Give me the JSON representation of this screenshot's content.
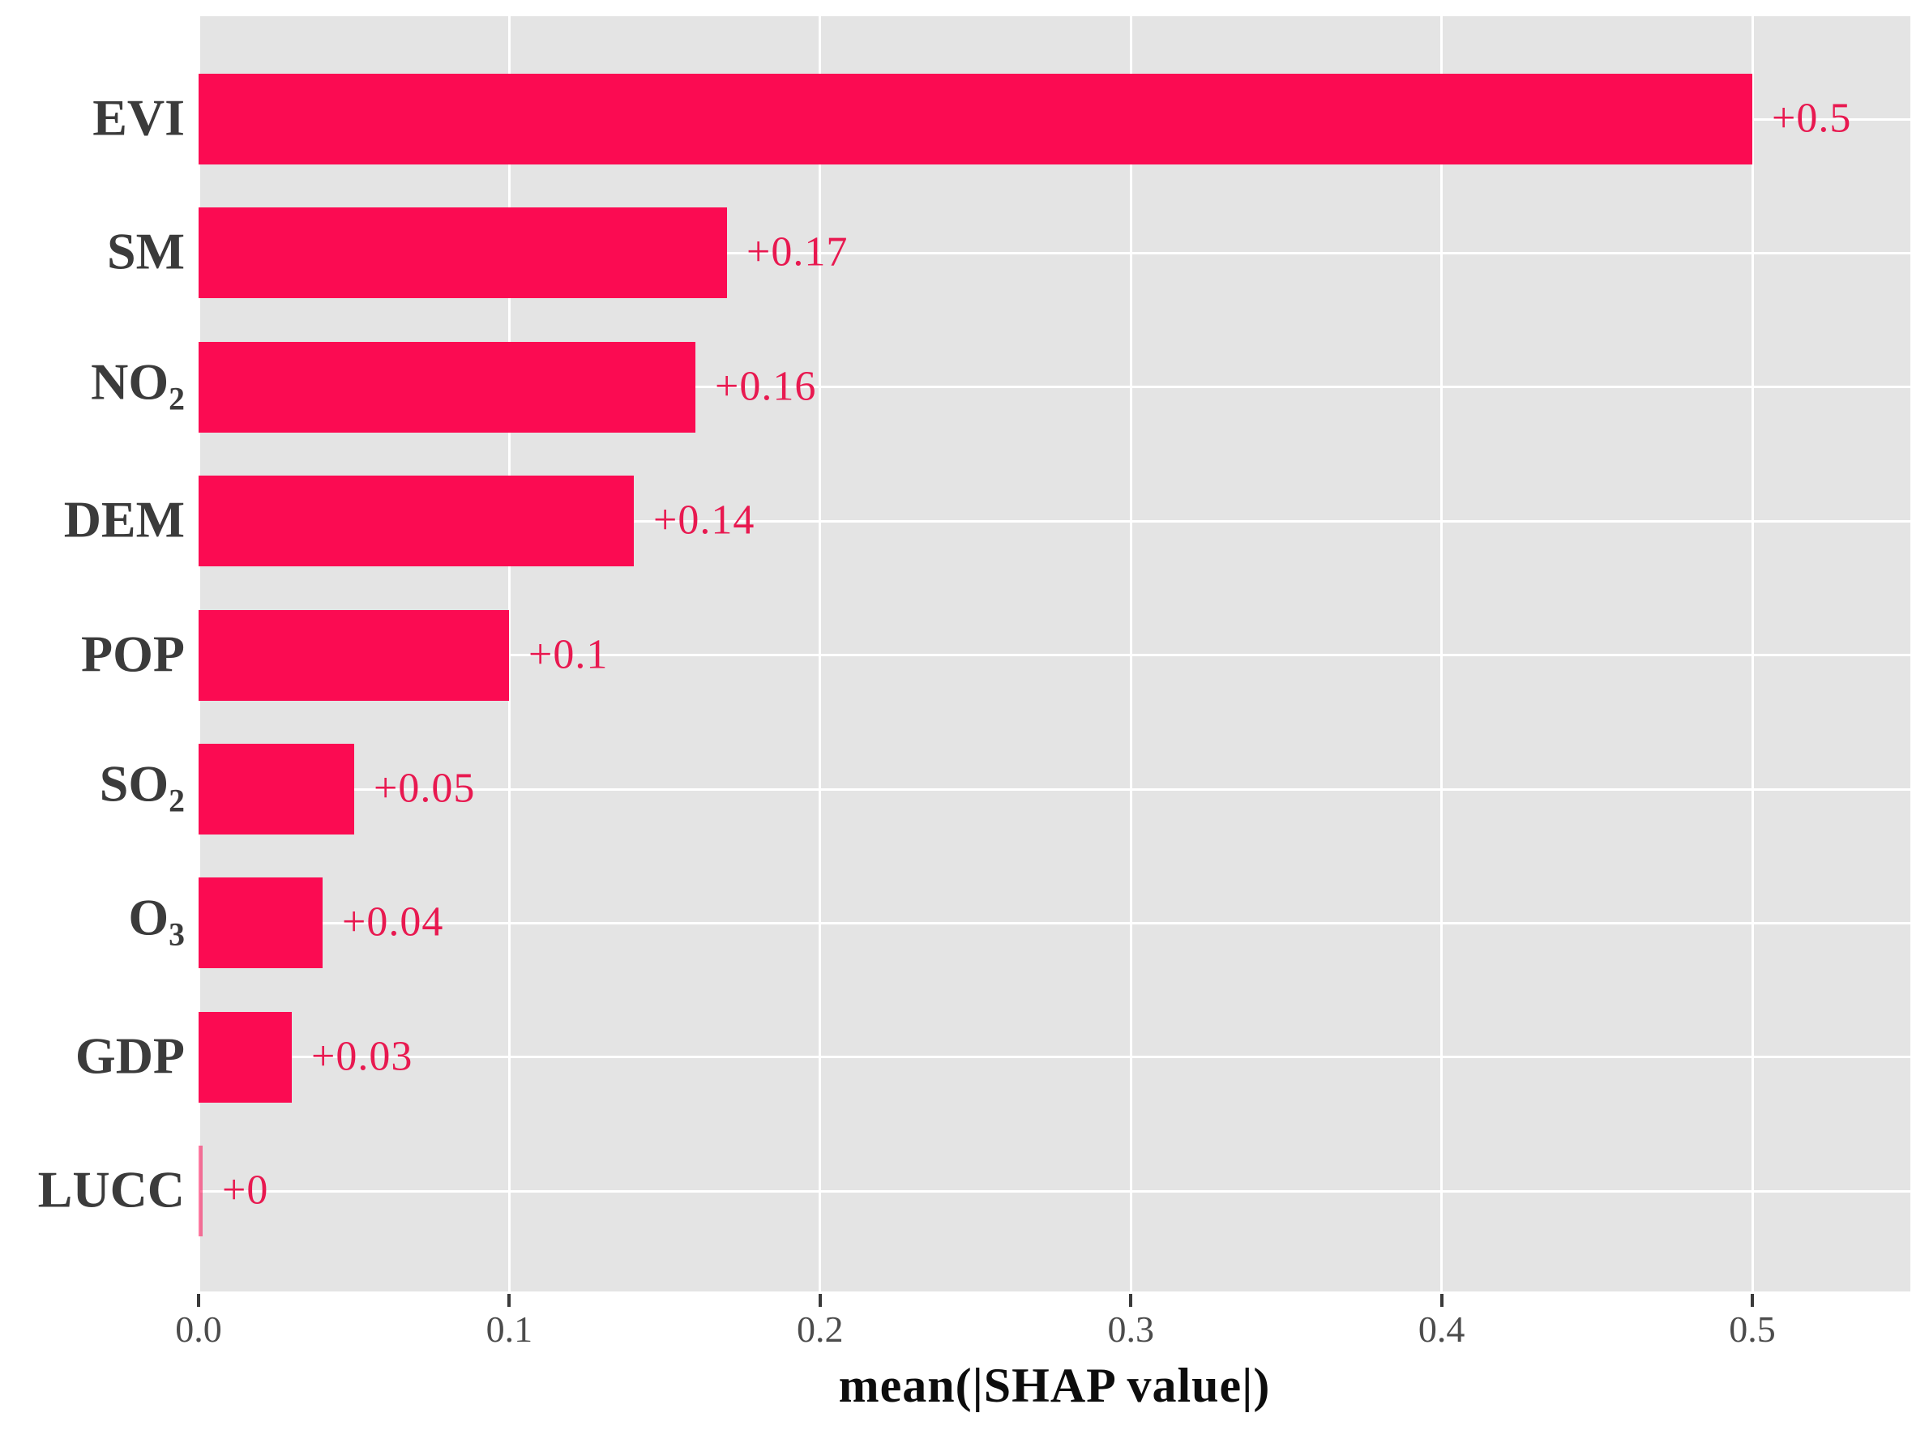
{
  "chart_data": {
    "type": "bar",
    "orientation": "horizontal",
    "title": "",
    "xlabel": "mean(|SHAP value|)",
    "ylabel": "",
    "categories": [
      "EVI",
      "SM",
      "NO2",
      "DEM",
      "POP",
      "SO2",
      "O3",
      "GDP",
      "LUCC"
    ],
    "category_rich": [
      {
        "base": "EVI",
        "sub": ""
      },
      {
        "base": "SM",
        "sub": ""
      },
      {
        "base": "NO",
        "sub": "2"
      },
      {
        "base": "DEM",
        "sub": ""
      },
      {
        "base": "POP",
        "sub": ""
      },
      {
        "base": "SO",
        "sub": "2"
      },
      {
        "base": "O",
        "sub": "3"
      },
      {
        "base": "GDP",
        "sub": ""
      },
      {
        "base": "LUCC",
        "sub": ""
      }
    ],
    "values": [
      0.5,
      0.17,
      0.16,
      0.14,
      0.1,
      0.05,
      0.04,
      0.03,
      0
    ],
    "bar_labels": [
      "+0.5",
      "+0.17",
      "+0.16",
      "+0.14",
      "+0.1",
      "+0.05",
      "+0.04",
      "+0.03",
      "+0"
    ],
    "x_ticks": [
      0.0,
      0.1,
      0.2,
      0.3,
      0.4,
      0.5
    ],
    "x_tick_labels": [
      "0.0",
      "0.1",
      "0.2",
      "0.3",
      "0.4",
      "0.5"
    ],
    "xlim": [
      0,
      0.551
    ],
    "grid": {
      "vertical": true,
      "horizontal": true
    },
    "legend": null
  },
  "colors": {
    "background": "#FFFFFF",
    "panel_bg": "#E4E4E4",
    "grid": "#FFFFFF",
    "bar": "#FB0B52",
    "bar_label": "#E81950",
    "category_label": "#3B3B3B",
    "tick_label": "#4C4C4C",
    "tick_mark": "#3A3A3A",
    "axis_title": "#0D0D0D"
  }
}
